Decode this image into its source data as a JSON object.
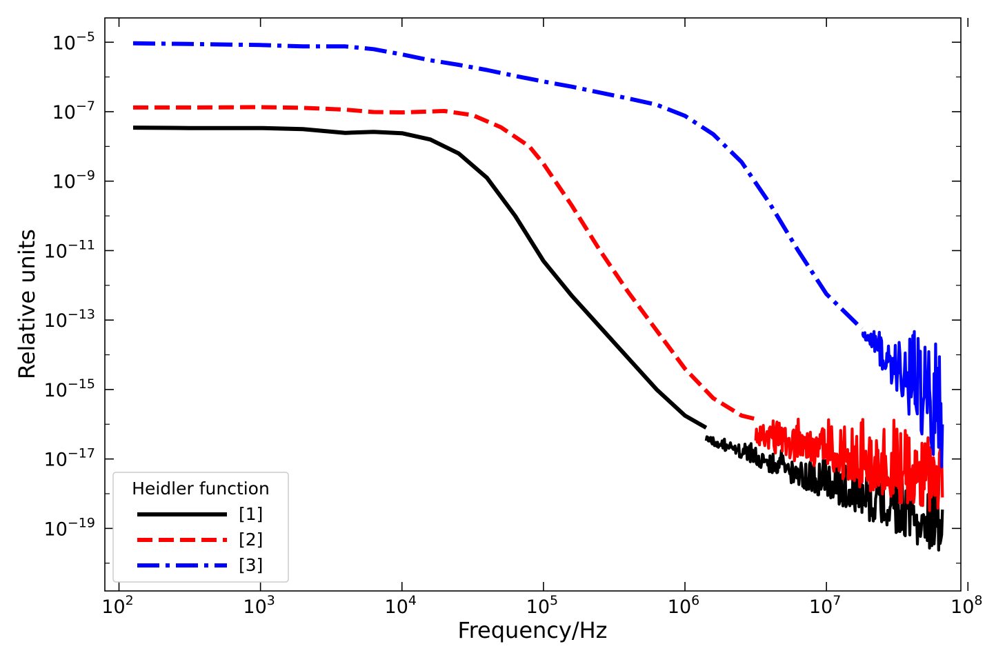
{
  "chart_data": {
    "type": "line",
    "xscale": "log",
    "yscale": "log",
    "xlabel": "Frequency/Hz",
    "ylabel": "Relative units",
    "xlim_exp": [
      1.9,
      7.95
    ],
    "ylim_exp": [
      -20.8,
      -4.3
    ],
    "x_ticks": [
      {
        "base": "10",
        "exp": "2",
        "value": 100
      },
      {
        "base": "10",
        "exp": "3",
        "value": 1000
      },
      {
        "base": "10",
        "exp": "4",
        "value": 10000
      },
      {
        "base": "10",
        "exp": "5",
        "value": 100000
      },
      {
        "base": "10",
        "exp": "6",
        "value": 1000000
      },
      {
        "base": "10",
        "exp": "7",
        "value": 10000000
      },
      {
        "base": "10",
        "exp": "8",
        "value": 100000000
      }
    ],
    "y_ticks": [
      {
        "base": "10",
        "exp": "−5",
        "value": 1e-05
      },
      {
        "base": "10",
        "exp": "−7",
        "value": 1e-07
      },
      {
        "base": "10",
        "exp": "−9",
        "value": 1e-09
      },
      {
        "base": "10",
        "exp": "−11",
        "value": 1e-11
      },
      {
        "base": "10",
        "exp": "−13",
        "value": 1e-13
      },
      {
        "base": "10",
        "exp": "−15",
        "value": 1e-15
      },
      {
        "base": "10",
        "exp": "−17",
        "value": 1e-17
      },
      {
        "base": "10",
        "exp": "−19",
        "value": 1e-19
      }
    ],
    "legend": {
      "title": "Heidler function",
      "position": "lower-left"
    },
    "series": [
      {
        "name": "[1]",
        "color": "#000000",
        "style": "solid",
        "log_x": [
          2.1,
          2.5,
          3.0,
          3.3,
          3.6,
          3.8,
          4.0,
          4.2,
          4.4,
          4.6,
          4.8,
          5.0,
          5.2,
          5.4,
          5.6,
          5.8,
          6.0,
          6.15
        ],
        "log_y": [
          -7.46,
          -7.47,
          -7.47,
          -7.5,
          -7.61,
          -7.58,
          -7.62,
          -7.8,
          -8.2,
          -8.9,
          -10.0,
          -11.3,
          -12.3,
          -13.2,
          -14.1,
          -15.0,
          -15.75,
          -16.1
        ],
        "noise": {
          "log_x_start": 6.15,
          "log_x_end": 7.82,
          "log_y_low": [
            -16.5,
            -19.8
          ],
          "log_y_high": [
            -16.3,
            -17.6
          ]
        }
      },
      {
        "name": "[2]",
        "color": "#ff0000",
        "style": "dashed",
        "log_x": [
          2.1,
          2.5,
          3.0,
          3.3,
          3.6,
          3.8,
          4.0,
          4.3,
          4.5,
          4.7,
          4.9,
          5.0,
          5.2,
          5.4,
          5.6,
          5.8,
          6.0,
          6.2,
          6.4,
          6.5
        ],
        "log_y": [
          -6.88,
          -6.88,
          -6.87,
          -6.89,
          -6.94,
          -7.01,
          -7.02,
          -6.98,
          -7.1,
          -7.45,
          -8.0,
          -8.5,
          -9.7,
          -11.0,
          -12.2,
          -13.3,
          -14.4,
          -15.25,
          -15.75,
          -15.85
        ],
        "noise": {
          "log_x_start": 6.5,
          "log_x_end": 7.82,
          "log_y_low": [
            -16.6,
            -18.8
          ],
          "log_y_high": [
            -15.8,
            -15.8
          ]
        }
      },
      {
        "name": "[3]",
        "color": "#0000ff",
        "style": "dashdot",
        "log_x": [
          2.1,
          2.5,
          3.0,
          3.3,
          3.6,
          3.8,
          4.0,
          4.2,
          4.4,
          4.6,
          4.8,
          5.0,
          5.2,
          5.4,
          5.6,
          5.8,
          6.0,
          6.2,
          6.4,
          6.6,
          6.8,
          7.0,
          7.2,
          7.25
        ],
        "log_y": [
          -5.03,
          -5.05,
          -5.08,
          -5.12,
          -5.12,
          -5.2,
          -5.35,
          -5.52,
          -5.65,
          -5.8,
          -5.97,
          -6.13,
          -6.28,
          -6.45,
          -6.62,
          -6.8,
          -7.12,
          -7.65,
          -8.45,
          -9.65,
          -11.0,
          -12.25,
          -13.05,
          -13.25
        ],
        "noise": {
          "log_x_start": 7.25,
          "log_x_end": 7.82,
          "log_y_low": [
            -13.4,
            -17.4
          ],
          "log_y_high": [
            -13.3,
            -13.3
          ]
        }
      }
    ]
  }
}
